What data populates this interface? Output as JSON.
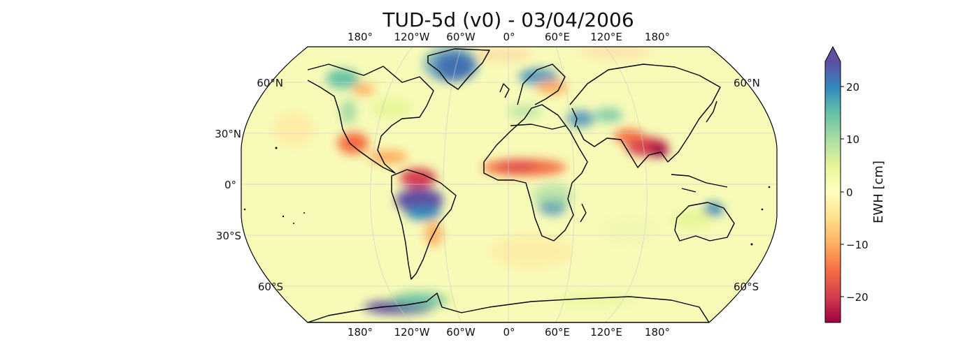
{
  "title": "TUD-5d (v0) - 03/04/2006",
  "map": {
    "projection": "Robinson",
    "lon_labels_top": [
      "180°",
      "120°W",
      "60°W",
      "0°",
      "60°E",
      "120°E",
      "180°"
    ],
    "lon_labels_bottom": [
      "180°",
      "120°W",
      "60°W",
      "0°",
      "60°E",
      "120°E",
      "180°"
    ],
    "lat_labels_left": [
      "60°N",
      "30°N",
      "0°",
      "30°S",
      "60°S"
    ],
    "lat_labels_right": [
      "60°N",
      "60°S"
    ],
    "ocean_color": "#f8fbb8",
    "graticule": true
  },
  "colorbar": {
    "label": "EWH [cm]",
    "ticks": [
      "20",
      "10",
      "0",
      "−10",
      "−20"
    ],
    "range": [
      -25,
      25
    ],
    "extend": "max",
    "colormap": "Spectral",
    "colors": [
      "#9e0142",
      "#d53e4f",
      "#f46d43",
      "#fdae61",
      "#fee08b",
      "#ffffbf",
      "#e6f598",
      "#abdda4",
      "#66c2a5",
      "#3288bd",
      "#5e4fa2"
    ]
  },
  "anomalies": [
    {
      "region": "Greenland",
      "ewh": 25
    },
    {
      "region": "Amazon basin (south)",
      "ewh": 25
    },
    {
      "region": "Amazon basin (north)",
      "ewh": -18
    },
    {
      "region": "Sahel",
      "ewh": -12
    },
    {
      "region": "Bay of Bengal / Southeast Asia",
      "ewh": -20
    },
    {
      "region": "Zambezi",
      "ewh": 14
    },
    {
      "region": "Northern Australia",
      "ewh": 18
    },
    {
      "region": "West Antarctica",
      "ewh": 25
    },
    {
      "region": "Alaska",
      "ewh": 15
    }
  ]
}
